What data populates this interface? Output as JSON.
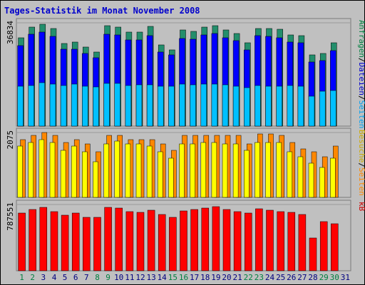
{
  "colors": {
    "background": "#c0c0c0",
    "panel_border": "#7a7a7a",
    "title_text": "#0000cc",
    "hits_front": "#0000ff",
    "hits_back": "#238e6c",
    "files_front": "#00a0f0",
    "files_back": "#1a3a9a",
    "pages_front": "#00c0ff",
    "visits_front": "#ffff00",
    "visits_back": "#ff8800",
    "kb_front": "#ff0000",
    "kb_back": "#a00000",
    "weekday_label": "#000080",
    "weekend_label": "#008040"
  },
  "chart_data": {
    "type": "bar",
    "title": "Tages-Statistik im Monat November 2008",
    "categories": [
      "1",
      "2",
      "3",
      "4",
      "5",
      "6",
      "7",
      "8",
      "9",
      "10",
      "11",
      "12",
      "13",
      "14",
      "15",
      "16",
      "17",
      "18",
      "19",
      "20",
      "21",
      "22",
      "23",
      "24",
      "25",
      "26",
      "27",
      "28",
      "29",
      "30",
      "31"
    ],
    "weekend_days": [
      "1",
      "2",
      "8",
      "9",
      "15",
      "16",
      "22",
      "23",
      "29",
      "30"
    ],
    "panels": [
      {
        "id": "hits",
        "max_label": "36834",
        "max": 36834,
        "right_labels": [
          {
            "text": "Anfragen",
            "color": "#008040"
          },
          {
            "text": "/",
            "color": "#000000"
          },
          {
            "text": "Dateien",
            "color": "#0000cc"
          },
          {
            "text": "/",
            "color": "#000000"
          },
          {
            "text": "Seiten",
            "color": "#00a0f0"
          }
        ],
        "series": [
          {
            "name": "Anfragen",
            "values": [
              31400,
              35300,
              36400,
              34900,
              29500,
              29900,
              28100,
              26500,
              35800,
              35400,
              33500,
              33500,
              35500,
              28900,
              27300,
              34200,
              33900,
              35400,
              35800,
              34200,
              33100,
              29800,
              34900,
              34900,
              34500,
              32600,
              32200,
              25400,
              25900,
              29600,
              null
            ]
          },
          {
            "name": "Dateien",
            "values": [
              28600,
              32700,
              33500,
              32000,
              27400,
              27500,
              25800,
              24400,
              32800,
              32400,
              30800,
              30700,
              32200,
              26500,
              25300,
              31300,
              31100,
              32500,
              32900,
              31500,
              30600,
              27200,
              32300,
              31900,
              31600,
              30100,
              29600,
              22800,
              23400,
              26900,
              null
            ]
          },
          {
            "name": "Seiten",
            "values": [
              14200,
              14600,
              15400,
              15000,
              14400,
              14900,
              14200,
              13900,
              15200,
              15200,
              14500,
              14700,
              14700,
              14300,
              14200,
              15000,
              14800,
              15000,
              14900,
              14700,
              14200,
              13800,
              14400,
              14300,
              14200,
              14500,
              14300,
              10600,
              12500,
              12800,
              null
            ]
          }
        ]
      },
      {
        "id": "visits",
        "max_label": "2075",
        "max": 2075,
        "right_labels": [
          {
            "text": "Besuche",
            "color": "#ccaa00"
          },
          {
            "text": "/",
            "color": "#000000"
          },
          {
            "text": "Seiten",
            "color": "#ff8800"
          }
        ],
        "series": [
          {
            "name": "Besuche",
            "values": [
              1650,
              1750,
              1850,
              1750,
              1500,
              1650,
              1450,
              1150,
              1700,
              1800,
              1700,
              1700,
              1650,
              1450,
              1250,
              1700,
              1700,
              1750,
              1750,
              1700,
              1700,
              1500,
              1750,
              1750,
              1750,
              1450,
              1300,
              1100,
              950,
              1250,
              null
            ]
          },
          {
            "name": "Seiten",
            "values": [
              1850,
              1980,
              2075,
              1980,
              1750,
              1850,
              1700,
              1450,
              1980,
              1980,
              1850,
              1850,
              1850,
              1700,
              1500,
              1980,
              1980,
              1980,
              1980,
              1980,
              1980,
              1700,
              2030,
              2030,
              1980,
              1750,
              1550,
              1450,
              1300,
              1650,
              null
            ]
          }
        ]
      },
      {
        "id": "kb",
        "max_label": "787551",
        "max": 787551,
        "right_labels": [
          {
            "text": "kB",
            "color": "#cc0000"
          }
        ],
        "series": [
          {
            "name": "kB",
            "values": [
              690000,
              728000,
              752000,
              700000,
              660000,
              688000,
              638000,
              638000,
              752000,
              748000,
              707000,
              698000,
              720000,
              668000,
              638000,
              710000,
              732000,
              748000,
              762000,
              728000,
              700000,
              685000,
              740000,
              718000,
              700000,
              695000,
              665000,
              388000,
              582000,
              562000,
              null
            ]
          }
        ]
      }
    ]
  }
}
